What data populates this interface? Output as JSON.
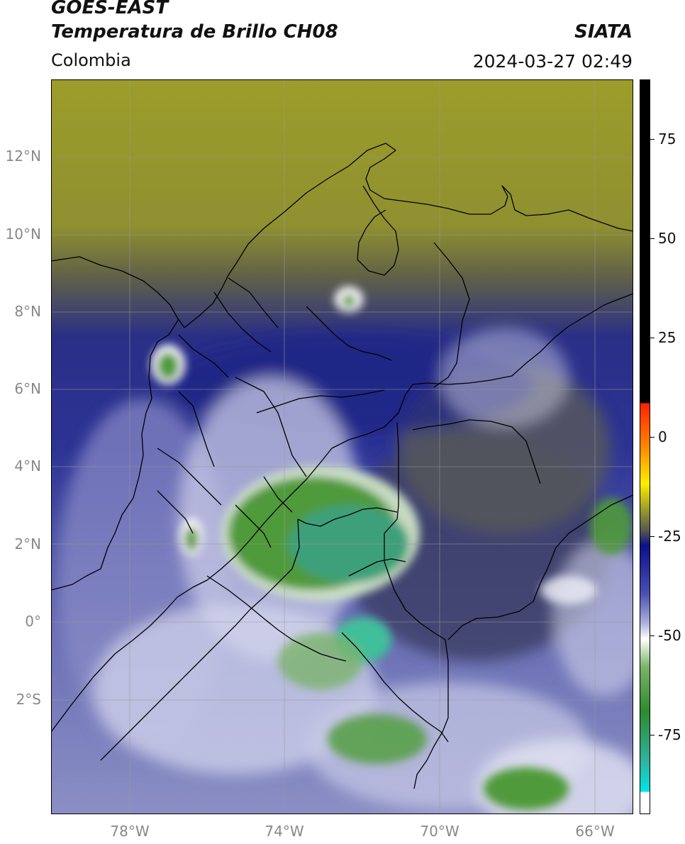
{
  "header": {
    "satellite": "GOES-EAST",
    "product": "Temperatura de Brillo CH08",
    "region": "Colombia",
    "organization": "SIATA",
    "timestamp": "2024-03-27 02:49"
  },
  "map": {
    "lat_ticks": [
      "12°N",
      "10°N",
      "8°N",
      "6°N",
      "4°N",
      "2°N",
      "0°",
      "2°S"
    ],
    "lon_ticks": [
      "78°W",
      "74°W",
      "70°W",
      "66°W"
    ],
    "lon_range": [
      -80,
      -65
    ],
    "lat_range": [
      -5,
      14
    ],
    "grid": true
  },
  "colorbar": {
    "ticks": [
      "75",
      "50",
      "25",
      "0",
      "-25",
      "-50",
      "-75"
    ],
    "range": [
      -95,
      90
    ]
  }
}
